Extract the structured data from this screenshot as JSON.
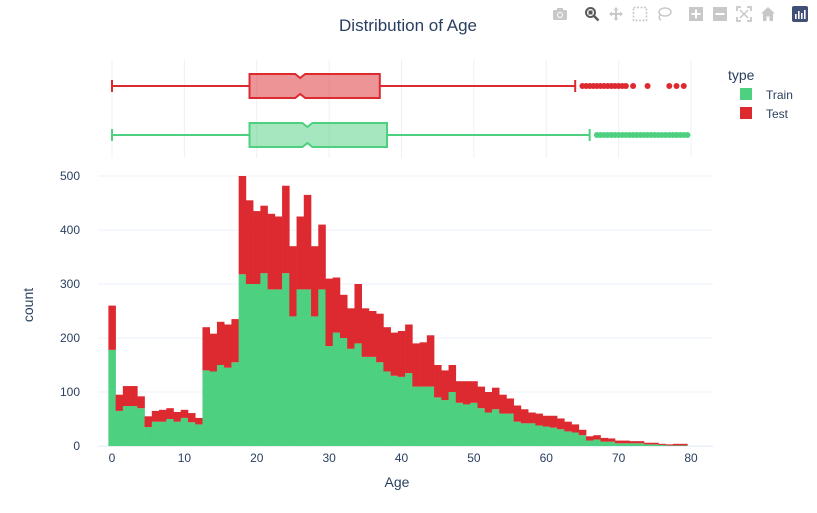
{
  "toolbar": {
    "icons": [
      "camera-icon",
      "zoom-icon",
      "pan-icon",
      "box-select-icon",
      "lasso-select-icon",
      "zoom-in-icon",
      "zoom-out-icon",
      "autoscale-icon",
      "reset-axes-icon",
      "plotly-logo-icon"
    ]
  },
  "colors": {
    "train": "#4dd07f",
    "test": "#dc2a30",
    "grid": "#ebf0f8",
    "text": "#2a3f5f"
  },
  "chart_data": {
    "type": "bar",
    "stacked": true,
    "title": "Distribution of Age",
    "xlabel": "Age",
    "ylabel": "count",
    "xlim": [
      -1.5,
      83
    ],
    "ylim": [
      0,
      500
    ],
    "xticks": [
      0,
      10,
      20,
      30,
      40,
      50,
      60,
      70,
      80
    ],
    "yticks": [
      0,
      100,
      200,
      300,
      400,
      500
    ],
    "legend": {
      "title": "type",
      "placement": "top-right",
      "items": [
        "Train",
        "Test"
      ]
    },
    "x": [
      0,
      1,
      2,
      3,
      4,
      5,
      6,
      7,
      8,
      9,
      10,
      11,
      12,
      13,
      14,
      15,
      16,
      17,
      18,
      19,
      20,
      21,
      22,
      23,
      24,
      25,
      26,
      27,
      28,
      29,
      30,
      31,
      32,
      33,
      34,
      35,
      36,
      37,
      38,
      39,
      40,
      41,
      42,
      43,
      44,
      45,
      46,
      47,
      48,
      49,
      50,
      51,
      52,
      53,
      54,
      55,
      56,
      57,
      58,
      59,
      60,
      61,
      62,
      63,
      64,
      65,
      66,
      67,
      68,
      69,
      70,
      71,
      72,
      73,
      74,
      75,
      76,
      77,
      78,
      79
    ],
    "series": [
      {
        "name": "Train",
        "values": [
          178,
          65,
          74,
          74,
          70,
          35,
          45,
          45,
          50,
          45,
          52,
          44,
          40,
          140,
          138,
          150,
          145,
          155,
          318,
          300,
          300,
          320,
          290,
          290,
          320,
          240,
          290,
          290,
          240,
          290,
          185,
          210,
          200,
          180,
          190,
          165,
          165,
          155,
          138,
          130,
          128,
          135,
          110,
          110,
          110,
          90,
          85,
          100,
          80,
          77,
          80,
          70,
          62,
          68,
          60,
          60,
          45,
          42,
          42,
          38,
          36,
          34,
          31,
          27,
          25,
          20,
          10,
          12,
          8,
          8,
          5,
          5,
          5,
          5,
          3,
          3,
          2,
          1,
          1,
          1
        ]
      },
      {
        "name": "Test",
        "values": [
          82,
          30,
          37,
          37,
          22,
          20,
          20,
          22,
          20,
          18,
          15,
          17,
          12,
          80,
          70,
          80,
          80,
          80,
          182,
          155,
          135,
          125,
          140,
          135,
          162,
          130,
          135,
          175,
          130,
          120,
          125,
          102,
          80,
          75,
          110,
          90,
          85,
          90,
          82,
          80,
          85,
          90,
          80,
          82,
          95,
          60,
          55,
          50,
          40,
          43,
          40,
          40,
          38,
          40,
          35,
          28,
          30,
          26,
          20,
          22,
          20,
          22,
          20,
          18,
          15,
          10,
          8,
          8,
          7,
          6,
          5,
          5,
          4,
          4,
          3,
          3,
          2,
          2,
          3,
          3
        ]
      }
    ],
    "box": [
      {
        "name": "Test",
        "min": 0,
        "q1": 19,
        "median": 26,
        "q3": 37,
        "upper_fence": 64,
        "outliers": [
          65,
          65.5,
          66,
          66.5,
          67,
          67.5,
          68,
          68.5,
          69,
          69.5,
          70,
          70.5,
          71,
          72,
          74,
          77,
          78,
          79
        ]
      },
      {
        "name": "Train",
        "min": 0,
        "q1": 19,
        "median": 27,
        "q3": 38,
        "upper_fence": 66,
        "outliers": [
          67,
          67.5,
          68,
          68.5,
          69,
          69.5,
          70,
          70.5,
          71,
          71.5,
          72,
          72.5,
          73,
          73.5,
          74,
          74.5,
          75,
          75.5,
          76,
          76.5,
          77,
          77.5,
          78,
          78.5,
          79,
          79.5
        ]
      }
    ]
  }
}
